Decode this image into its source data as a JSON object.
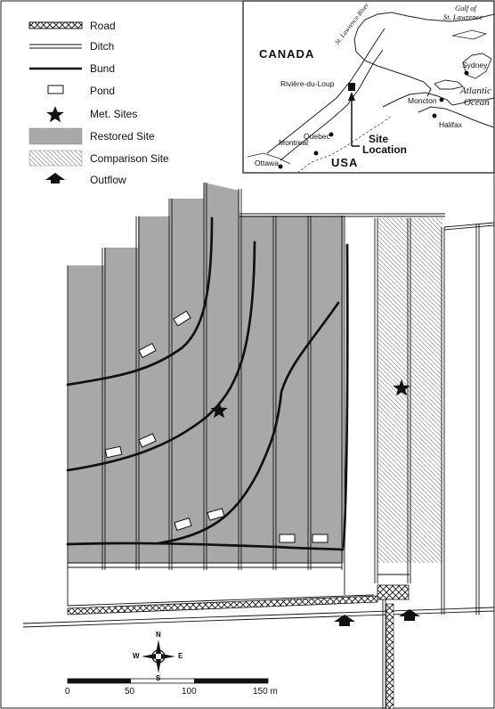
{
  "legend": {
    "items": [
      {
        "key": "road",
        "label": "Road"
      },
      {
        "key": "ditch",
        "label": "Ditch"
      },
      {
        "key": "bund",
        "label": "Bund"
      },
      {
        "key": "pond",
        "label": "Pond"
      },
      {
        "key": "met_sites",
        "label": "Met. Sites"
      },
      {
        "key": "restored_site",
        "label": "Restored Site"
      },
      {
        "key": "comparison_site",
        "label": "Comparison Site"
      },
      {
        "key": "outflow",
        "label": "Outflow"
      }
    ]
  },
  "inset": {
    "country_canada": "CANADA",
    "country_usa": "USA",
    "river": "St. Lawrence River",
    "gulf_line1": "Gulf of",
    "gulf_line2": "St. Lawrence",
    "ocean_line1": "Atlantic",
    "ocean_line2": "Ocean",
    "cities": {
      "sydney": "Sydney",
      "riviere_du_loup": "Rivière-du-Loup",
      "moncton": "Moncton",
      "quebec": "Quebec",
      "halifax": "Halifax",
      "montreal": "Montreal",
      "ottawa": "Ottawa"
    },
    "site_location_line1": "Site",
    "site_location_line2": "Location"
  },
  "compass": {
    "n": "N",
    "s": "S",
    "e": "E",
    "w": "W"
  },
  "scale_bar": {
    "ticks": [
      "0",
      "50",
      "100",
      "150 m"
    ]
  },
  "colors": {
    "restored_fill": "#a8a8a8",
    "comparison_hatch": "#777777",
    "line": "#111111",
    "background": "#ffffff"
  }
}
